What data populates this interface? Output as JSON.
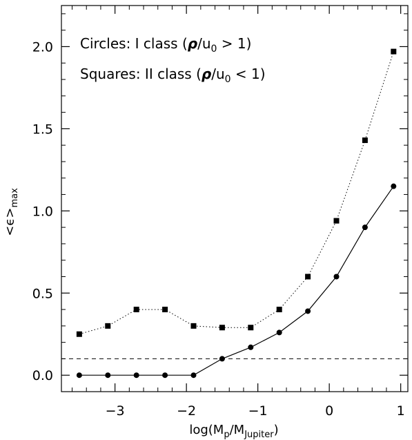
{
  "chart_data": {
    "type": "line",
    "title": "",
    "xlabel": "log(M",
    "xlabel_sub1": "p",
    "xlabel_mid": "/M",
    "xlabel_sub2": "Jupiter",
    "xlabel_end": ")",
    "ylabel": "<ϵ>",
    "ylabel_sub": "max",
    "xlim": [
      -3.75,
      1.1
    ],
    "ylim": [
      -0.1,
      2.25
    ],
    "xticks": [
      -3,
      -2,
      -1,
      0,
      1
    ],
    "xtick_labels": [
      "−3",
      "−2",
      "−1",
      "0",
      "1"
    ],
    "yticks": [
      0.0,
      0.5,
      1.0,
      1.5,
      2.0
    ],
    "ytick_labels": [
      "0.0",
      "0.5",
      "1.0",
      "1.5",
      "2.0"
    ],
    "grid": false,
    "x": [
      -3.5,
      -3.1,
      -2.7,
      -2.3,
      -1.9,
      -1.5,
      -1.1,
      -0.7,
      -0.3,
      0.1,
      0.5,
      0.9
    ],
    "series": [
      {
        "marker": "square",
        "line_style": "dotted",
        "values": [
          0.25,
          0.3,
          0.4,
          0.4,
          0.3,
          0.29,
          0.29,
          0.4,
          0.6,
          0.94,
          1.43,
          1.97
        ]
      },
      {
        "marker": "circle",
        "line_style": "solid",
        "values": [
          0.0,
          0.0,
          0.0,
          0.0,
          0.0,
          0.1,
          0.17,
          0.26,
          0.39,
          0.6,
          0.9,
          1.15
        ]
      }
    ],
    "reference_line": {
      "y": 0.1,
      "style": "dashed"
    },
    "annotations": {
      "line1_prefix": "Circles: I  class (",
      "line1_rho": "ρ",
      "line1_mid": "/u",
      "line1_sub": "0",
      "line1_suffix": " > 1)",
      "line2_prefix": "Squares: II  class (",
      "line2_rho": "ρ",
      "line2_mid": "/u",
      "line2_sub": "0",
      "line2_suffix": " < 1)"
    }
  }
}
